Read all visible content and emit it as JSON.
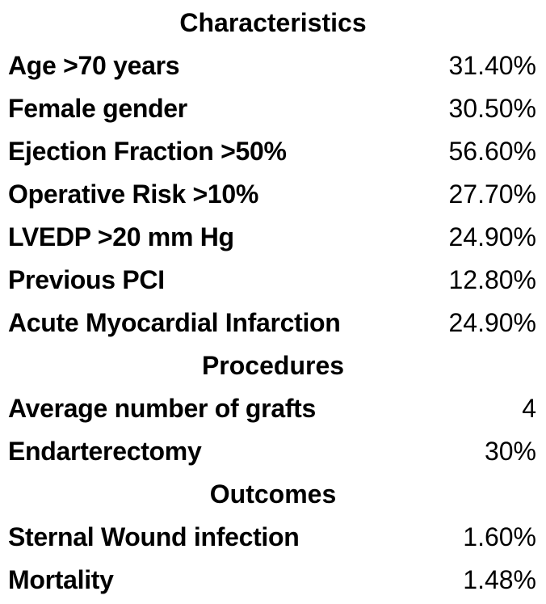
{
  "sections": [
    {
      "title": "Characteristics",
      "rows": [
        {
          "label": "Age >70 years",
          "value": "31.40%"
        },
        {
          "label": "Female gender",
          "value": "30.50%"
        },
        {
          "label": "Ejection Fraction >50%",
          "value": "56.60%"
        },
        {
          "label": "Operative Risk >10%",
          "value": "27.70%"
        },
        {
          "label": "LVEDP >20 mm Hg",
          "value": "24.90%"
        },
        {
          "label": "Previous PCI",
          "value": "12.80%"
        },
        {
          "label": "Acute Myocardial Infarction",
          "value": "24.90%"
        }
      ]
    },
    {
      "title": "Procedures",
      "rows": [
        {
          "label": "Average number of grafts",
          "value": "4"
        },
        {
          "label": "Endarterectomy",
          "value": "30%"
        }
      ]
    },
    {
      "title": "Outcomes",
      "rows": [
        {
          "label": "Sternal Wound infection",
          "value": "1.60%"
        },
        {
          "label": "Mortality",
          "value": "1.48%"
        }
      ]
    }
  ]
}
